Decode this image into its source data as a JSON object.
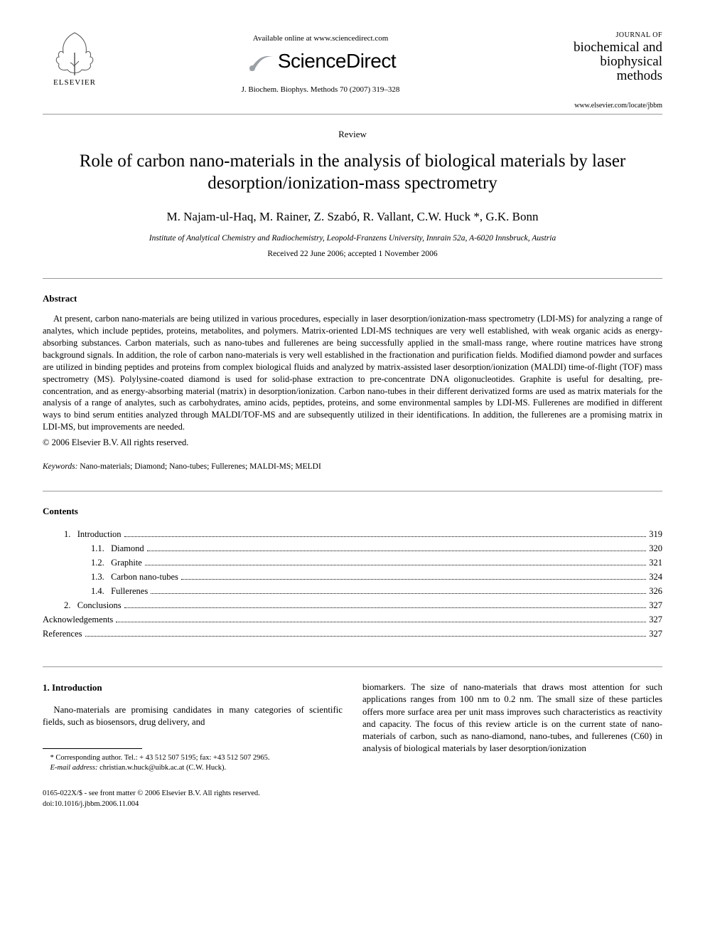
{
  "header": {
    "elsevier_label": "ELSEVIER",
    "available_online": "Available online at www.sciencedirect.com",
    "sd_brand": "ScienceDirect",
    "citation": "J. Biochem. Biophys. Methods 70 (2007) 319–328",
    "journal_label": "JOURNAL OF",
    "journal_name_l1": "biochemical and",
    "journal_name_l2": "biophysical",
    "journal_name_l3": "methods",
    "journal_url": "www.elsevier.com/locate/jbbm"
  },
  "article": {
    "type": "Review",
    "title": "Role of carbon nano-materials in the analysis of biological materials by laser desorption/ionization-mass spectrometry",
    "authors": "M. Najam-ul-Haq, M. Rainer, Z. Szabó, R. Vallant, C.W. Huck *, G.K. Bonn",
    "affiliation": "Institute of Analytical Chemistry and Radiochemistry, Leopold-Franzens University, Innrain 52a, A-6020 Innsbruck, Austria",
    "dates": "Received 22 June 2006; accepted 1 November 2006"
  },
  "abstract": {
    "heading": "Abstract",
    "text": "At present, carbon nano-materials are being utilized in various procedures, especially in laser desorption/ionization-mass spectrometry (LDI-MS) for analyzing a range of analytes, which include peptides, proteins, metabolites, and polymers. Matrix-oriented LDI-MS techniques are very well established, with weak organic acids as energy-absorbing substances. Carbon materials, such as nano-tubes and fullerenes are being successfully applied in the small-mass range, where routine matrices have strong background signals. In addition, the role of carbon nano-materials is very well established in the fractionation and purification fields. Modified diamond powder and surfaces are utilized in binding peptides and proteins from complex biological fluids and analyzed by matrix-assisted laser desorption/ionization (MALDI) time-of-flight (TOF) mass spectrometry (MS). Polylysine-coated diamond is used for solid-phase extraction to pre-concentrate DNA oligonucleotides. Graphite is useful for desalting, pre-concentration, and as energy-absorbing material (matrix) in desorption/ionization. Carbon nano-tubes in their different derivatized forms are used as matrix materials for the analysis of a range of analytes, such as carbohydrates, amino acids, peptides, proteins, and some environmental samples by LDI-MS. Fullerenes are modified in different ways to bind serum entities analyzed through MALDI/TOF-MS and are subsequently utilized in their identifications. In addition, the fullerenes are a promising matrix in LDI-MS, but improvements are needed.",
    "copyright": "© 2006 Elsevier B.V. All rights reserved."
  },
  "keywords": {
    "label": "Keywords:",
    "text": " Nano-materials; Diamond; Nano-tubes; Fullerenes; MALDI-MS; MELDI"
  },
  "contents": {
    "heading": "Contents",
    "items": [
      {
        "num": "1.",
        "label": "Introduction",
        "page": "319",
        "indent": 1
      },
      {
        "num": "1.1.",
        "label": "Diamond",
        "page": "320",
        "indent": 2
      },
      {
        "num": "1.2.",
        "label": "Graphite",
        "page": "321",
        "indent": 2
      },
      {
        "num": "1.3.",
        "label": "Carbon nano-tubes",
        "page": "324",
        "indent": 2
      },
      {
        "num": "1.4.",
        "label": "Fullerenes",
        "page": "326",
        "indent": 2
      },
      {
        "num": "2.",
        "label": "Conclusions",
        "page": "327",
        "indent": 1
      },
      {
        "num": "",
        "label": "Acknowledgements",
        "page": "327",
        "indent": 0
      },
      {
        "num": "",
        "label": "References",
        "page": "327",
        "indent": 0
      }
    ]
  },
  "body": {
    "intro_heading": "1. Introduction",
    "col1_para": "Nano-materials are promising candidates in many categories of scientific fields, such as biosensors, drug delivery, and",
    "col2_para": "biomarkers. The size of nano-materials that draws most attention for such applications ranges from 100 nm to 0.2 nm. The small size of these particles offers more surface area per unit mass improves such characteristics as reactivity and capacity. The focus of this review article is on the current state of nano-materials of carbon, such as nano-diamond, nano-tubes, and fullerenes (C60) in analysis of biological materials by laser desorption/ionization"
  },
  "footnote": {
    "corr": "* Corresponding author. Tel.: + 43 512 507 5195; fax: +43 512 507 2965.",
    "email_label": "E-mail address:",
    "email": " christian.w.huck@uibk.ac.at ",
    "email_tail": "(C.W. Huck)."
  },
  "bottom": {
    "line1": "0165-022X/$ - see front matter © 2006 Elsevier B.V. All rights reserved.",
    "line2": "doi:10.1016/j.jbbm.2006.11.004"
  },
  "colors": {
    "text": "#000000",
    "rule": "#999999",
    "sd_swoosh": "#9aa0a6"
  }
}
